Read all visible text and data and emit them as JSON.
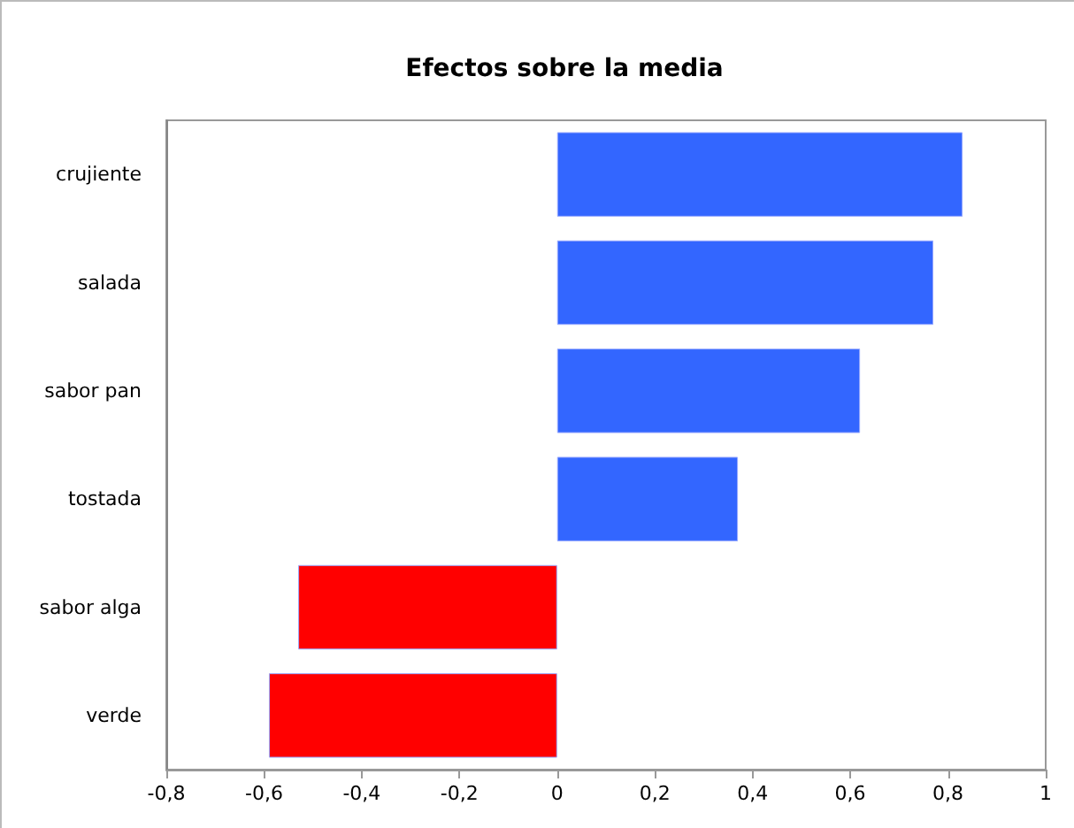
{
  "chart_data": {
    "type": "bar",
    "orientation": "horizontal",
    "title": "Efectos sobre la media",
    "categories": [
      "crujiente",
      "salada",
      "sabor pan",
      "tostada",
      "sabor alga",
      "verde"
    ],
    "values": [
      0.83,
      0.77,
      0.62,
      0.37,
      -0.53,
      -0.59
    ],
    "colors": [
      "#3366ff",
      "#3366ff",
      "#3366ff",
      "#3366ff",
      "#ff0000",
      "#ff0000"
    ],
    "xlim": [
      -0.8,
      1
    ],
    "xticks": [
      {
        "value": -0.8,
        "label": "-0,8"
      },
      {
        "value": -0.6,
        "label": "-0,6"
      },
      {
        "value": -0.4,
        "label": "-0,4"
      },
      {
        "value": -0.2,
        "label": "-0,2"
      },
      0,
      {
        "value": 0.2,
        "label": "0,2"
      },
      {
        "value": 0.4,
        "label": "0,4"
      },
      {
        "value": 0.6,
        "label": "0,6"
      },
      {
        "value": 0.8,
        "label": "0,8"
      },
      1
    ],
    "grid": false
  }
}
